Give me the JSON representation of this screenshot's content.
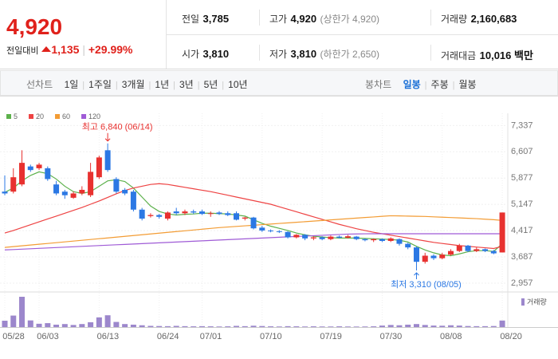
{
  "quote": {
    "price": "4,920",
    "change_label": "전일대비",
    "change": "1,135",
    "change_pct": "+29.99%"
  },
  "stats": [
    {
      "label": "전일",
      "value": "3,785"
    },
    {
      "label": "고가",
      "value": "4,920",
      "note": "(상한가 4,920)"
    },
    {
      "label": "거래량",
      "value": "2,160,683"
    },
    {
      "label": "시가",
      "value": "3,810"
    },
    {
      "label": "저가",
      "value": "3,810",
      "note": "(하한가 2,650)"
    },
    {
      "label": "거래대금",
      "value": "10,016 백만"
    }
  ],
  "tabs": {
    "line_label": "선차트",
    "line": [
      "1일",
      "1주일",
      "3개월",
      "1년",
      "3년",
      "5년",
      "10년"
    ],
    "candle_label": "봉차트",
    "candle": [
      "일봉",
      "주봉",
      "월봉"
    ]
  },
  "chart_data": {
    "type": "candlestick",
    "categories": [
      "05/28",
      null,
      null,
      null,
      "06/03",
      null,
      null,
      null,
      null,
      null,
      null,
      "06/13",
      null,
      null,
      null,
      null,
      null,
      null,
      "06/24",
      null,
      null,
      null,
      null,
      "07/01",
      null,
      null,
      null,
      null,
      null,
      null,
      "07/10",
      null,
      null,
      null,
      null,
      null,
      null,
      "07/19",
      null,
      null,
      null,
      null,
      null,
      null,
      "07/30",
      null,
      null,
      null,
      null,
      null,
      null,
      "08/08",
      null,
      null,
      null,
      null,
      null,
      null,
      "08/20"
    ],
    "open": [
      5500,
      5500,
      5700,
      6200,
      6150,
      6150,
      5700,
      5500,
      5330,
      5450,
      5400,
      5900,
      6650,
      5850,
      5550,
      5500,
      5000,
      4820,
      4850,
      4750,
      4950,
      4900,
      4950,
      4950,
      4880,
      4920,
      4900,
      4900,
      4750,
      4780,
      4500,
      4420,
      4400,
      4380,
      4230,
      4300,
      4200,
      4230,
      4180,
      4250,
      4220,
      4250,
      4180,
      4150,
      4180,
      4130,
      4180,
      4050,
      3950,
      3550,
      3720,
      3650,
      3750,
      3850,
      4000,
      3850,
      3900,
      3850,
      3810
    ],
    "high": [
      5950,
      6150,
      6650,
      6250,
      6300,
      6200,
      5800,
      5550,
      5500,
      5650,
      6300,
      6500,
      6840,
      5900,
      5600,
      5550,
      5050,
      4900,
      4880,
      4950,
      5050,
      5000,
      5000,
      5000,
      4950,
      4960,
      4950,
      4950,
      4800,
      4800,
      4550,
      4450,
      4430,
      4400,
      4320,
      4320,
      4260,
      4260,
      4280,
      4280,
      4300,
      4270,
      4200,
      4200,
      4200,
      4230,
      4200,
      4080,
      3980,
      3800,
      3760,
      3800,
      3900,
      4050,
      4020,
      3950,
      3920,
      3880,
      4920
    ],
    "low": [
      5400,
      5450,
      5650,
      6050,
      6100,
      5800,
      5400,
      5300,
      5300,
      5400,
      5350,
      5850,
      6050,
      5450,
      5400,
      4950,
      4700,
      4780,
      4750,
      4700,
      4850,
      4850,
      4880,
      4850,
      4800,
      4850,
      4820,
      4700,
      4700,
      4450,
      4380,
      4370,
      4350,
      4200,
      4200,
      4150,
      4150,
      4150,
      4150,
      4200,
      4200,
      4150,
      4120,
      4100,
      4100,
      4100,
      4000,
      3900,
      3310,
      3500,
      3600,
      3620,
      3720,
      3820,
      3820,
      3820,
      3820,
      3760,
      3810
    ],
    "close": [
      5450,
      5900,
      6300,
      6100,
      6250,
      5850,
      5450,
      5400,
      5450,
      5550,
      6050,
      6450,
      6100,
      5500,
      5450,
      5000,
      4750,
      4850,
      4800,
      4920,
      4900,
      4950,
      4920,
      4880,
      4900,
      4880,
      4850,
      4720,
      4780,
      4480,
      4420,
      4400,
      4380,
      4230,
      4300,
      4200,
      4230,
      4180,
      4250,
      4220,
      4260,
      4180,
      4150,
      4180,
      4130,
      4200,
      4050,
      3950,
      3550,
      3720,
      3650,
      3750,
      3850,
      4000,
      3850,
      3900,
      3850,
      3785,
      4920
    ],
    "up_color": "#e8312f",
    "down_color": "#2b78e4",
    "series": [
      {
        "name": "5",
        "color": "#5db14c",
        "values": [
          5480,
          5600,
          5800,
          5950,
          6050,
          6000,
          5850,
          5650,
          5500,
          5450,
          5500,
          5650,
          5800,
          5830,
          5780,
          5600,
          5350,
          5100,
          4950,
          4880,
          4850,
          4870,
          4880,
          4900,
          4900,
          4890,
          4880,
          4850,
          4820,
          4720,
          4620,
          4540,
          4480,
          4420,
          4350,
          4300,
          4260,
          4240,
          4220,
          4210,
          4210,
          4210,
          4200,
          4190,
          4180,
          4170,
          4150,
          4100,
          3980,
          3880,
          3800,
          3740,
          3720,
          3770,
          3830,
          3860,
          3860,
          3840,
          4050
        ]
      },
      {
        "name": "20",
        "color": "#ee4343",
        "values": [
          4350,
          4420,
          4500,
          4580,
          4660,
          4740,
          4820,
          4900,
          4980,
          5060,
          5150,
          5240,
          5340,
          5440,
          5530,
          5600,
          5650,
          5700,
          5720,
          5700,
          5660,
          5620,
          5580,
          5540,
          5500,
          5450,
          5400,
          5350,
          5300,
          5250,
          5200,
          5150,
          5080,
          5010,
          4940,
          4870,
          4800,
          4730,
          4660,
          4590,
          4530,
          4470,
          4420,
          4370,
          4330,
          4290,
          4250,
          4210,
          4170,
          4130,
          4090,
          4060,
          4030,
          4000,
          3980,
          3960,
          3940,
          3920,
          3980
        ]
      },
      {
        "name": "60",
        "color": "#f39c34",
        "values": [
          3950,
          3972,
          3994,
          4016,
          4038,
          4060,
          4082,
          4104,
          4126,
          4148,
          4170,
          4192,
          4214,
          4236,
          4258,
          4280,
          4302,
          4324,
          4346,
          4368,
          4390,
          4412,
          4434,
          4456,
          4478,
          4500,
          4517,
          4533,
          4550,
          4566,
          4583,
          4599,
          4616,
          4632,
          4649,
          4665,
          4682,
          4698,
          4715,
          4731,
          4748,
          4764,
          4781,
          4797,
          4814,
          4830,
          4825,
          4820,
          4815,
          4810,
          4800,
          4790,
          4780,
          4770,
          4760,
          4750,
          4735,
          4720,
          4700
        ]
      },
      {
        "name": "120",
        "color": "#9f5bd6",
        "values": [
          3880,
          3891,
          3902,
          3913,
          3924,
          3935,
          3946,
          3957,
          3968,
          3979,
          3990,
          4001,
          4012,
          4023,
          4034,
          4045,
          4056,
          4067,
          4078,
          4089,
          4100,
          4111,
          4122,
          4133,
          4144,
          4155,
          4166,
          4177,
          4188,
          4199,
          4210,
          4221,
          4232,
          4243,
          4254,
          4265,
          4276,
          4287,
          4298,
          4309,
          4320,
          4325,
          4328,
          4330,
          4330,
          4330,
          4330,
          4330,
          4330,
          4330,
          4330,
          4330,
          4330,
          4330,
          4330,
          4330,
          4330,
          4330,
          4330
        ]
      }
    ],
    "volume": {
      "name": "거래량",
      "color": "#9c87cc",
      "values": [
        2100000,
        3800000,
        10000000,
        2200000,
        1100000,
        1300000,
        800000,
        1000000,
        700000,
        1000000,
        1600000,
        3200000,
        3900000,
        1700000,
        1000000,
        800000,
        600000,
        400000,
        350000,
        300000,
        400000,
        300000,
        250000,
        300000,
        250000,
        200000,
        250000,
        400000,
        300000,
        450000,
        350000,
        250000,
        200000,
        300000,
        250000,
        200000,
        250000,
        200000,
        200000,
        250000,
        200000,
        180000,
        200000,
        250000,
        500000,
        700000,
        600000,
        800000,
        1000000,
        700000,
        500000,
        450000,
        600000,
        500000,
        350000,
        300000,
        300000,
        350000,
        2160683
      ]
    },
    "high_label": "최고 6,840 (06/14)",
    "low_label": "최저 3,310 (08/05)",
    "ylim": [
      2800,
      7500
    ],
    "yticks": [
      {
        "value": 2957,
        "label": "2,957"
      },
      {
        "value": 3687,
        "label": "3,687"
      },
      {
        "value": 4417,
        "label": "4,417"
      },
      {
        "value": 5147,
        "label": "5,147"
      },
      {
        "value": 5877,
        "label": "5,877"
      },
      {
        "value": 6607,
        "label": "6,607"
      },
      {
        "value": 7337,
        "label": "7,337"
      }
    ],
    "grid": true
  }
}
